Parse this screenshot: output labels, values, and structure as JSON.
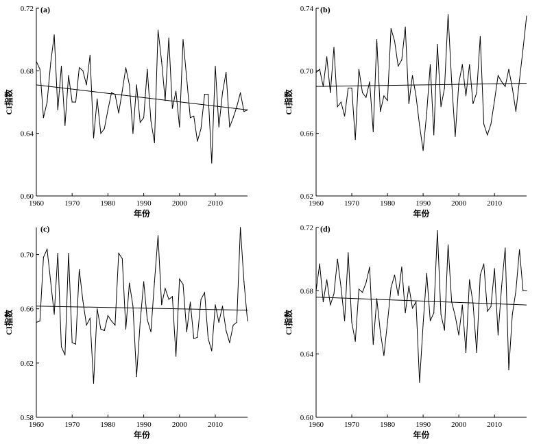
{
  "chart_data": [
    {
      "type": "line",
      "panel_label": "(a)",
      "xlabel": "年份",
      "ylabel": "CI指数",
      "xlim": [
        1960,
        2019
      ],
      "ylim": [
        0.6,
        0.72
      ],
      "xticks": [
        1960,
        1970,
        1980,
        1990,
        2000,
        2010
      ],
      "yticks": [
        "0.60",
        "0.64",
        "0.68",
        "0.72"
      ],
      "x": [
        1960,
        1961,
        1962,
        1963,
        1964,
        1965,
        1966,
        1967,
        1968,
        1969,
        1970,
        1971,
        1972,
        1973,
        1974,
        1975,
        1976,
        1977,
        1978,
        1979,
        1980,
        1981,
        1982,
        1983,
        1984,
        1985,
        1986,
        1987,
        1988,
        1989,
        1990,
        1991,
        1992,
        1993,
        1994,
        1995,
        1996,
        1997,
        1998,
        1999,
        2000,
        2001,
        2002,
        2003,
        2004,
        2005,
        2006,
        2007,
        2008,
        2009,
        2010,
        2011,
        2012,
        2013,
        2014,
        2015,
        2016,
        2017,
        2018,
        2019
      ],
      "values": [
        0.686,
        0.681,
        0.65,
        0.66,
        0.685,
        0.703,
        0.655,
        0.683,
        0.645,
        0.677,
        0.66,
        0.66,
        0.682,
        0.68,
        0.671,
        0.69,
        0.637,
        0.662,
        0.64,
        0.643,
        0.655,
        0.666,
        0.665,
        0.653,
        0.667,
        0.682,
        0.671,
        0.64,
        0.671,
        0.647,
        0.65,
        0.681,
        0.648,
        0.634,
        0.706,
        0.686,
        0.661,
        0.701,
        0.656,
        0.667,
        0.644,
        0.7,
        0.675,
        0.65,
        0.651,
        0.635,
        0.643,
        0.665,
        0.665,
        0.621,
        0.683,
        0.644,
        0.666,
        0.679,
        0.644,
        0.65,
        0.657,
        0.666,
        0.654,
        0.655
      ],
      "trend": [
        0.671,
        0.655
      ]
    },
    {
      "type": "line",
      "panel_label": "(b)",
      "xlabel": "年份",
      "ylabel": "CI指数",
      "xlim": [
        1960,
        2019
      ],
      "ylim": [
        0.62,
        0.74
      ],
      "xticks": [
        1960,
        1970,
        1980,
        1990,
        2000,
        2010
      ],
      "yticks": [
        "0.62",
        "0.66",
        "0.70",
        "0.74"
      ],
      "x": [
        1960,
        1961,
        1962,
        1963,
        1964,
        1965,
        1966,
        1967,
        1968,
        1969,
        1970,
        1971,
        1972,
        1973,
        1974,
        1975,
        1976,
        1977,
        1978,
        1979,
        1980,
        1981,
        1982,
        1983,
        1984,
        1985,
        1986,
        1987,
        1988,
        1989,
        1990,
        1991,
        1992,
        1993,
        1994,
        1995,
        1996,
        1997,
        1998,
        1999,
        2000,
        2001,
        2002,
        2003,
        2004,
        2005,
        2006,
        2007,
        2008,
        2009,
        2010,
        2011,
        2012,
        2013,
        2014,
        2015,
        2016,
        2017,
        2018,
        2019
      ],
      "values": [
        0.699,
        0.701,
        0.69,
        0.709,
        0.686,
        0.715,
        0.677,
        0.68,
        0.671,
        0.689,
        0.689,
        0.656,
        0.701,
        0.686,
        0.683,
        0.693,
        0.661,
        0.72,
        0.674,
        0.684,
        0.681,
        0.727,
        0.719,
        0.703,
        0.707,
        0.728,
        0.679,
        0.697,
        0.684,
        0.665,
        0.649,
        0.673,
        0.704,
        0.659,
        0.717,
        0.677,
        0.689,
        0.736,
        0.693,
        0.658,
        0.692,
        0.704,
        0.684,
        0.704,
        0.679,
        0.686,
        0.722,
        0.666,
        0.659,
        0.666,
        0.681,
        0.697,
        0.693,
        0.69,
        0.701,
        0.689,
        0.674,
        0.694,
        0.714,
        0.735
      ],
      "trend": [
        0.69,
        0.692
      ]
    },
    {
      "type": "line",
      "panel_label": "(c)",
      "xlabel": "年份",
      "ylabel": "CI指数",
      "xlim": [
        1960,
        2019
      ],
      "ylim": [
        0.58,
        0.72
      ],
      "xticks": [
        1960,
        1970,
        1980,
        1990,
        2000,
        2010
      ],
      "yticks": [
        "0.58",
        "0.62",
        "0.66",
        "0.70"
      ],
      "x": [
        1960,
        1961,
        1962,
        1963,
        1964,
        1965,
        1966,
        1967,
        1968,
        1969,
        1970,
        1971,
        1972,
        1973,
        1974,
        1975,
        1976,
        1977,
        1978,
        1979,
        1980,
        1981,
        1982,
        1983,
        1984,
        1985,
        1986,
        1987,
        1988,
        1989,
        1990,
        1991,
        1992,
        1993,
        1994,
        1995,
        1996,
        1997,
        1998,
        1999,
        2000,
        2001,
        2002,
        2003,
        2004,
        2005,
        2006,
        2007,
        2008,
        2009,
        2010,
        2011,
        2012,
        2013,
        2014,
        2015,
        2016,
        2017,
        2018,
        2019
      ],
      "values": [
        0.65,
        0.651,
        0.698,
        0.704,
        0.68,
        0.656,
        0.701,
        0.632,
        0.626,
        0.701,
        0.635,
        0.634,
        0.689,
        0.666,
        0.648,
        0.653,
        0.605,
        0.66,
        0.645,
        0.644,
        0.655,
        0.651,
        0.648,
        0.701,
        0.697,
        0.645,
        0.679,
        0.662,
        0.61,
        0.65,
        0.68,
        0.652,
        0.643,
        0.68,
        0.714,
        0.663,
        0.675,
        0.667,
        0.669,
        0.625,
        0.682,
        0.678,
        0.643,
        0.665,
        0.638,
        0.639,
        0.667,
        0.672,
        0.638,
        0.629,
        0.663,
        0.65,
        0.662,
        0.644,
        0.635,
        0.648,
        0.65,
        0.72,
        0.68,
        0.651
      ],
      "trend": [
        0.662,
        0.659
      ]
    },
    {
      "type": "line",
      "panel_label": "(d)",
      "xlabel": "年份",
      "ylabel": "CI指数",
      "xlim": [
        1960,
        2019
      ],
      "ylim": [
        0.6,
        0.72
      ],
      "xticks": [
        1960,
        1970,
        1980,
        1990,
        2000,
        2010
      ],
      "yticks": [
        "0.60",
        "0.64",
        "0.68",
        "0.72"
      ],
      "x": [
        1960,
        1961,
        1962,
        1963,
        1964,
        1965,
        1966,
        1967,
        1968,
        1969,
        1970,
        1971,
        1972,
        1973,
        1974,
        1975,
        1976,
        1977,
        1978,
        1979,
        1980,
        1981,
        1982,
        1983,
        1984,
        1985,
        1986,
        1987,
        1988,
        1989,
        1990,
        1991,
        1992,
        1993,
        1994,
        1995,
        1996,
        1997,
        1998,
        1999,
        2000,
        2001,
        2002,
        2003,
        2004,
        2005,
        2006,
        2007,
        2008,
        2009,
        2010,
        2011,
        2012,
        2013,
        2014,
        2015,
        2016,
        2017,
        2018,
        2019
      ],
      "values": [
        0.68,
        0.697,
        0.673,
        0.687,
        0.671,
        0.678,
        0.7,
        0.682,
        0.661,
        0.704,
        0.66,
        0.648,
        0.681,
        0.679,
        0.685,
        0.695,
        0.646,
        0.675,
        0.654,
        0.639,
        0.66,
        0.682,
        0.69,
        0.677,
        0.695,
        0.666,
        0.683,
        0.669,
        0.673,
        0.622,
        0.659,
        0.691,
        0.661,
        0.666,
        0.718,
        0.665,
        0.655,
        0.709,
        0.673,
        0.664,
        0.652,
        0.671,
        0.641,
        0.687,
        0.672,
        0.641,
        0.69,
        0.697,
        0.667,
        0.67,
        0.694,
        0.652,
        0.683,
        0.707,
        0.63,
        0.665,
        0.68,
        0.706,
        0.68,
        0.68
      ],
      "trend": [
        0.676,
        0.671
      ]
    }
  ]
}
